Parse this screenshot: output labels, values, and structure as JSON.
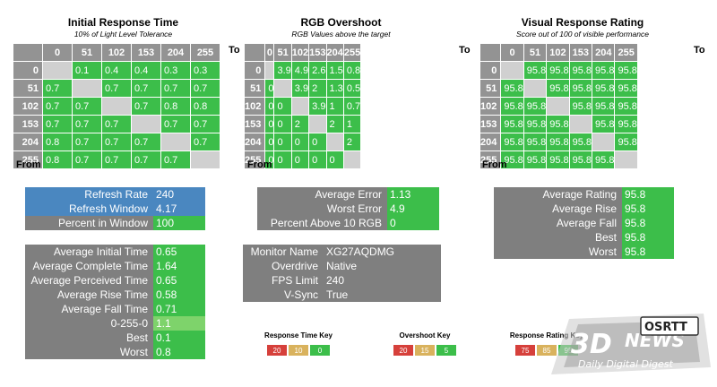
{
  "panels": {
    "response_time": {
      "title": "Initial Response Time",
      "subtitle": "10% of Light Level Tolerance",
      "to_label": "To",
      "from_label": "From",
      "cols": [
        "0",
        "51",
        "102",
        "153",
        "204",
        "255"
      ],
      "rows": [
        {
          "h": "0",
          "v": [
            "",
            "0.1",
            "0.4",
            "0.4",
            "0.3",
            "0.3"
          ]
        },
        {
          "h": "51",
          "v": [
            "0.7",
            "",
            "0.7",
            "0.7",
            "0.7",
            "0.7"
          ]
        },
        {
          "h": "102",
          "v": [
            "0.7",
            "0.7",
            "",
            "0.7",
            "0.8",
            "0.8"
          ]
        },
        {
          "h": "153",
          "v": [
            "0.7",
            "0.7",
            "0.7",
            "",
            "0.7",
            "0.7"
          ]
        },
        {
          "h": "204",
          "v": [
            "0.8",
            "0.7",
            "0.7",
            "0.7",
            "",
            "0.7"
          ]
        },
        {
          "h": "255",
          "v": [
            "0.8",
            "0.7",
            "0.7",
            "0.7",
            "0.7",
            ""
          ]
        }
      ]
    },
    "overshoot": {
      "title": "RGB Overshoot",
      "subtitle": "RGB Values above the target",
      "to_label": "To",
      "from_label": "From",
      "cols": [
        "0",
        "51",
        "102",
        "153",
        "204",
        "255"
      ],
      "rows": [
        {
          "h": "0",
          "v": [
            "",
            "3.9",
            "4.9",
            "2.6",
            "1.5",
            "0.8"
          ]
        },
        {
          "h": "51",
          "v": [
            "0",
            "",
            "3.9",
            "2",
            "1.3",
            "0.5"
          ]
        },
        {
          "h": "102",
          "v": [
            "0",
            "0",
            "",
            "3.9",
            "1",
            "0.7"
          ]
        },
        {
          "h": "153",
          "v": [
            "0",
            "0",
            "2",
            "",
            "2",
            "1"
          ]
        },
        {
          "h": "204",
          "v": [
            "0",
            "0",
            "0",
            "0",
            "",
            "2"
          ]
        },
        {
          "h": "255",
          "v": [
            "0",
            "0",
            "0",
            "0",
            "0",
            ""
          ]
        }
      ]
    },
    "rating": {
      "title": "Visual Response Rating",
      "subtitle": "Score out of 100 of visible performance",
      "to_label": "To",
      "from_label": "From",
      "cols": [
        "0",
        "51",
        "102",
        "153",
        "204",
        "255"
      ],
      "rows": [
        {
          "h": "0",
          "v": [
            "",
            "95.8",
            "95.8",
            "95.8",
            "95.8",
            "95.8"
          ]
        },
        {
          "h": "51",
          "v": [
            "95.8",
            "",
            "95.8",
            "95.8",
            "95.8",
            "95.8"
          ]
        },
        {
          "h": "102",
          "v": [
            "95.8",
            "95.8",
            "",
            "95.8",
            "95.8",
            "95.8"
          ]
        },
        {
          "h": "153",
          "v": [
            "95.8",
            "95.8",
            "95.8",
            "",
            "95.8",
            "95.8"
          ]
        },
        {
          "h": "204",
          "v": [
            "95.8",
            "95.8",
            "95.8",
            "95.8",
            "",
            "95.8"
          ]
        },
        {
          "h": "255",
          "v": [
            "95.8",
            "95.8",
            "95.8",
            "95.8",
            "95.8",
            ""
          ]
        }
      ]
    }
  },
  "refresh": [
    {
      "label": "Refresh Rate",
      "value": "240"
    },
    {
      "label": "Refresh Window",
      "value": "4.17"
    },
    {
      "label": "Percent in Window",
      "value": "100"
    }
  ],
  "times": [
    {
      "label": "Average Initial Time",
      "value": "0.65"
    },
    {
      "label": "Average Complete Time",
      "value": "1.64"
    },
    {
      "label": "Average Perceived Time",
      "value": "0.65"
    },
    {
      "label": "Average Rise Time",
      "value": "0.58"
    },
    {
      "label": "Average Fall Time",
      "value": "0.71"
    },
    {
      "label": "0-255-0",
      "value": "1.1"
    },
    {
      "label": "Best",
      "value": "0.1"
    },
    {
      "label": "Worst",
      "value": "0.8"
    }
  ],
  "errors": [
    {
      "label": "Average Error",
      "value": "1.13"
    },
    {
      "label": "Worst Error",
      "value": "4.9"
    },
    {
      "label": "Percent Above 10 RGB",
      "value": "0"
    }
  ],
  "monitor": [
    {
      "label": "Monitor Name",
      "value": "XG27AQDMG"
    },
    {
      "label": "Overdrive",
      "value": "Native"
    },
    {
      "label": "FPS Limit",
      "value": "240"
    },
    {
      "label": "V-Sync",
      "value": "True"
    }
  ],
  "ratings": [
    {
      "label": "Average Rating",
      "value": "95.8"
    },
    {
      "label": "Average Rise",
      "value": "95.8"
    },
    {
      "label": "Average Fall",
      "value": "95.8"
    },
    {
      "label": "Best",
      "value": "95.8"
    },
    {
      "label": "Worst",
      "value": "95.8"
    }
  ],
  "keys": {
    "response": {
      "title": "Response Time Key",
      "values": [
        "20",
        "10",
        "0"
      ]
    },
    "overshoot": {
      "title": "Overshoot Key",
      "values": [
        "20",
        "15",
        "5"
      ]
    },
    "rating": {
      "title": "Response Rating Key",
      "values": [
        "75",
        "85",
        "95"
      ]
    }
  },
  "logo": {
    "brand": "3D",
    "osrtt": "OSRTT",
    "news": "NEWS",
    "tagline": "Daily Digital Digest"
  },
  "colors": {
    "green": "#3cbe4a",
    "light_green": "#7ed36b",
    "gray": "#7f7f7f",
    "header_gray": "#939393",
    "blue": "#4a87c0",
    "diag": "#d0d0d0",
    "red": "#d6403b",
    "yellow": "#d9b25d"
  }
}
